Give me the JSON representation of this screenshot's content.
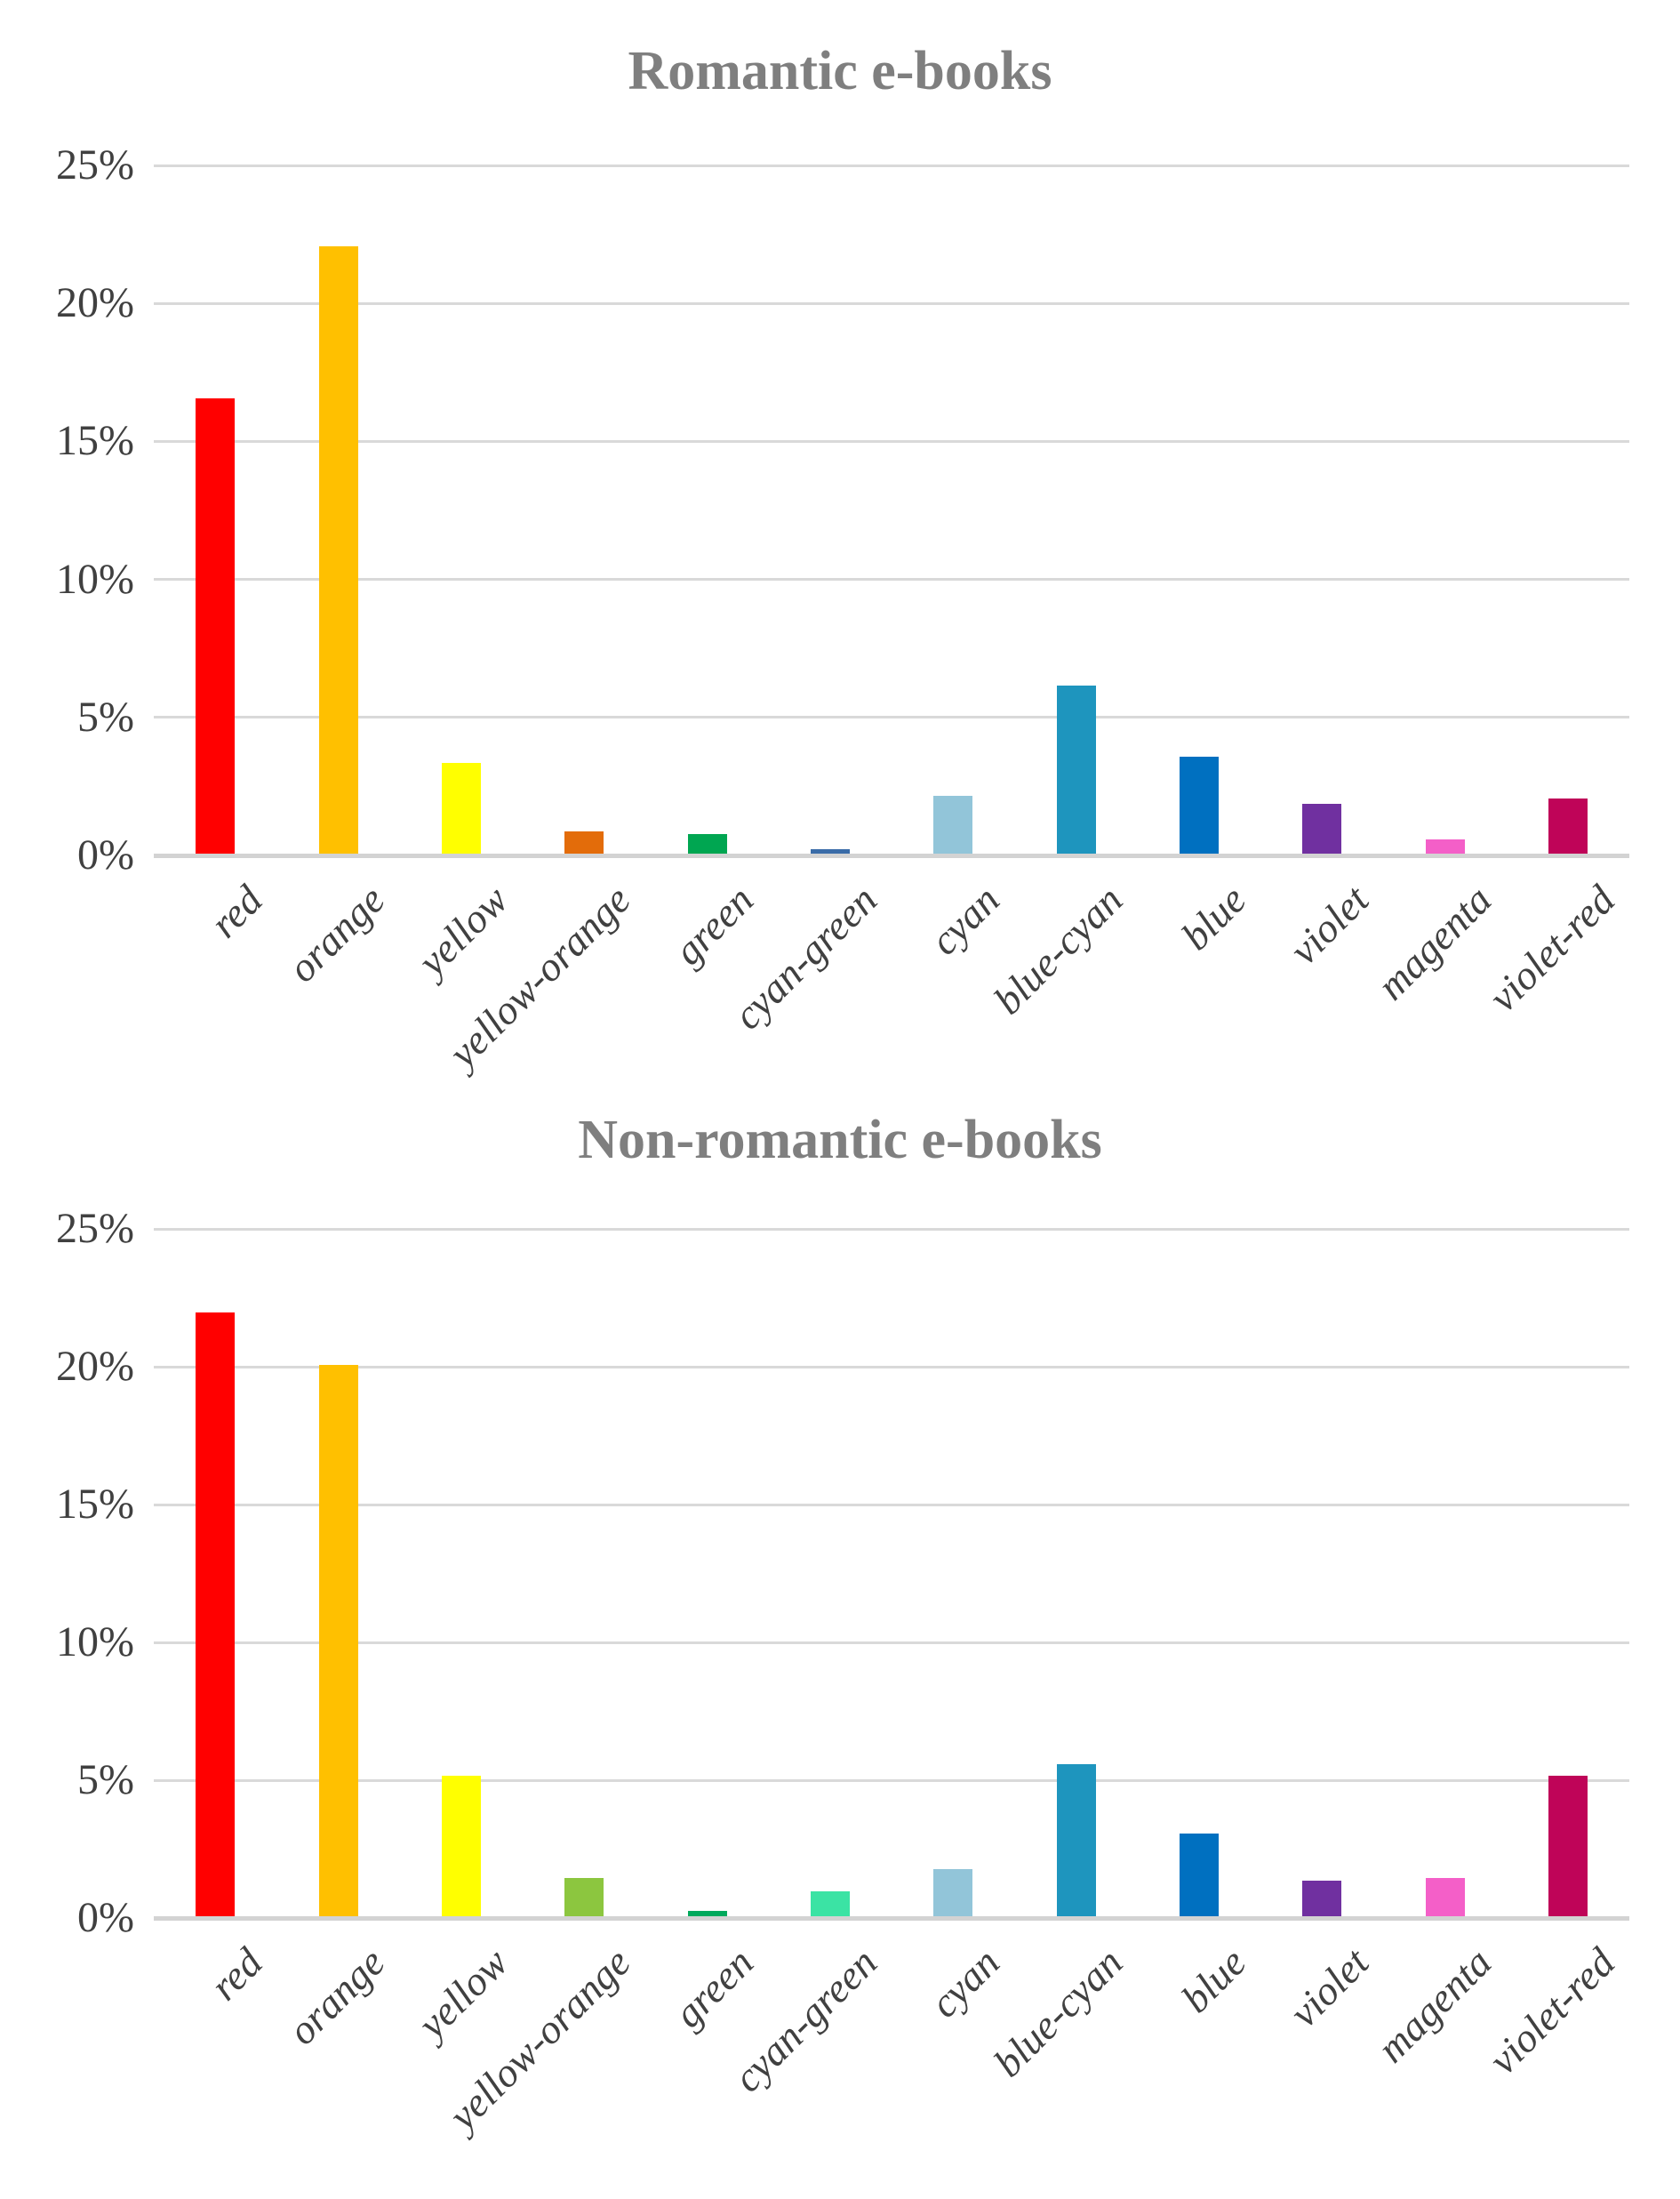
{
  "page": {
    "background": "#ffffff",
    "title_color": "#7f7f7f",
    "axis_text_color": "#404040",
    "gridline_color": "#d9d9d9"
  },
  "chart_data": [
    {
      "type": "bar",
      "title": "Romantic e-books",
      "categories": [
        "red",
        "orange",
        "yellow",
        "yellow-orange",
        "green",
        "cyan-green",
        "cyan",
        "blue-cyan",
        "blue",
        "violet",
        "magenta",
        "violet-red"
      ],
      "values": [
        16.5,
        22,
        3.3,
        0.8,
        0.7,
        0.15,
        2.1,
        6.1,
        3.5,
        1.8,
        0.5,
        2.0
      ],
      "bar_colors": [
        "#FF0000",
        "#FFC000",
        "#FFFF00",
        "#E36C0A",
        "#00A651",
        "#3A6CA8",
        "#92C5D9",
        "#1E95BE",
        "#0070C0",
        "#7030A0",
        "#F45FC8",
        "#BF0458"
      ],
      "xlabel": "",
      "ylabel": "",
      "ylim": [
        0,
        25
      ],
      "ytick_step": 5,
      "yticks": [
        "0%",
        "5%",
        "10%",
        "15%",
        "20%",
        "25%"
      ],
      "grid": "horizontal",
      "legend": "none"
    },
    {
      "type": "bar",
      "title": "Non-romantic e-books",
      "categories": [
        "red",
        "orange",
        "yellow",
        "yellow-orange",
        "green",
        "cyan-green",
        "cyan",
        "blue-cyan",
        "blue",
        "violet",
        "magenta",
        "violet-red"
      ],
      "values": [
        21.9,
        20,
        5.1,
        1.4,
        0.2,
        0.9,
        1.7,
        5.5,
        3.0,
        1.3,
        1.4,
        5.1
      ],
      "bar_colors": [
        "#FF0000",
        "#FFC000",
        "#FFFF00",
        "#8CC63F",
        "#00A95C",
        "#3BE3A4",
        "#92C5D9",
        "#1E95BE",
        "#0070C0",
        "#7030A0",
        "#F45FC8",
        "#BF0458"
      ],
      "xlabel": "",
      "ylabel": "",
      "ylim": [
        0,
        25
      ],
      "ytick_step": 5,
      "yticks": [
        "0%",
        "5%",
        "10%",
        "15%",
        "20%",
        "25%"
      ],
      "grid": "horizontal",
      "legend": "none"
    }
  ]
}
